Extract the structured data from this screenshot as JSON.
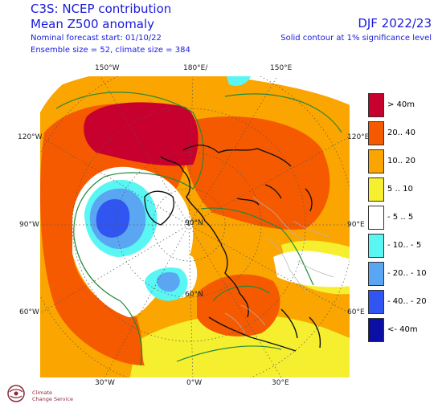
{
  "header": {
    "title": "C3S: NCEP contribution",
    "subtitle": "Mean Z500 anomaly",
    "forecast_start": "Nominal forecast start: 01/10/22",
    "ensemble": "Ensemble size = 52, climate size = 384",
    "season": "DJF 2022/23",
    "note": "Solid contour at 1% significance level"
  },
  "map": {
    "longitude_labels": [
      "150°W",
      "180°E/",
      "150°E",
      "120°W",
      "120°E",
      "90°W",
      "90°E",
      "60°W",
      "60°E",
      "30°W",
      "0°W",
      "30°E"
    ],
    "inner_labels": [
      "90°N",
      "60°N"
    ]
  },
  "legend": [
    {
      "label": "> 40m",
      "color": "#c8002d"
    },
    {
      "label": "20.. 40",
      "color": "#f55a00"
    },
    {
      "label": "10.. 20",
      "color": "#fba500"
    },
    {
      "label": "5 .. 10",
      "color": "#f6ef2f"
    },
    {
      "label": "- 5 .. 5",
      "color": "#ffffff"
    },
    {
      "label": "- 10.. - 5",
      "color": "#59f6f4"
    },
    {
      "label": "- 20.. - 10",
      "color": "#5aa6f3"
    },
    {
      "label": "- 40.. - 20",
      "color": "#3055f0"
    },
    {
      "label": "<- 40m",
      "color": "#0b0fa3"
    }
  ],
  "logo": {
    "line1": "Climate",
    "line2": "Change Service"
  }
}
